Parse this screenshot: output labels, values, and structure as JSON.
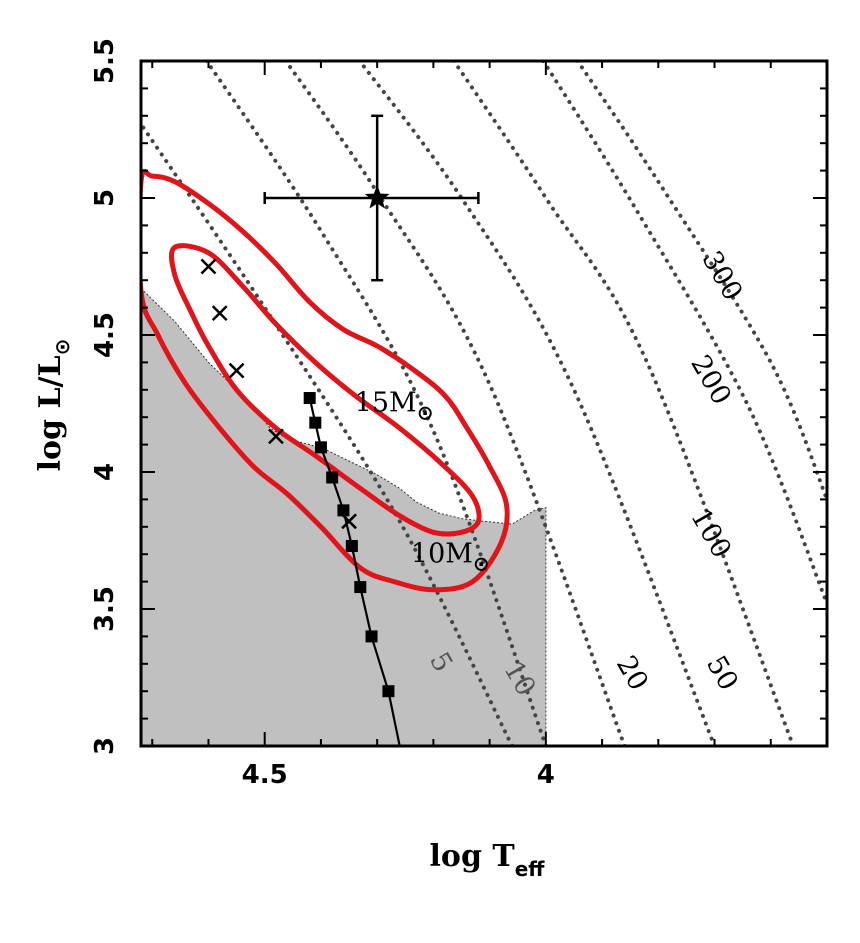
{
  "chart_data": {
    "type": "line",
    "title": "",
    "xlabel": {
      "main": "log T",
      "sub": "eff"
    },
    "ylabel": {
      "main": "log L/L",
      "sun": "⊙"
    },
    "xlim": [
      4.72,
      3.5
    ],
    "ylim": [
      3.0,
      5.5
    ],
    "x_reversed": true,
    "x_ticks": [
      {
        "value": 4.5,
        "label": "4.5"
      },
      {
        "value": 4.0,
        "label": "4"
      }
    ],
    "y_ticks": [
      {
        "value": 3.0,
        "label": "3"
      },
      {
        "value": 3.5,
        "label": "3.5"
      },
      {
        "value": 4.0,
        "label": "4"
      },
      {
        "value": 4.5,
        "label": "4.5"
      },
      {
        "value": 5.0,
        "label": "5"
      },
      {
        "value": 5.5,
        "label": "5.5"
      }
    ],
    "grid": false,
    "colors": {
      "contour": "#e0141b",
      "shade": "#c0c0c0",
      "radius_line": "#444444",
      "track": "#000000"
    },
    "series": [
      {
        "kind": "shaded_region",
        "points": [
          [
            4.72,
            4.67
          ],
          [
            4.66,
            4.55
          ],
          [
            4.6,
            4.4
          ],
          [
            4.54,
            4.28
          ],
          [
            4.49,
            4.16
          ],
          [
            4.46,
            4.12
          ],
          [
            4.42,
            4.1
          ],
          [
            4.39,
            4.08
          ],
          [
            4.34,
            4.03
          ],
          [
            4.3,
            3.99
          ],
          [
            4.26,
            3.94
          ],
          [
            4.23,
            3.89
          ],
          [
            4.19,
            3.85
          ],
          [
            4.15,
            3.83
          ],
          [
            4.11,
            3.82
          ],
          [
            4.06,
            3.81
          ],
          [
            4.02,
            3.86
          ],
          [
            4.0,
            3.87
          ],
          [
            4.0,
            3.0
          ],
          [
            4.72,
            3.0
          ]
        ]
      },
      {
        "kind": "contour_outer",
        "points": [
          [
            4.72,
            5.06
          ],
          [
            4.7,
            5.08
          ],
          [
            4.66,
            5.06
          ],
          [
            4.6,
            4.98
          ],
          [
            4.54,
            4.88
          ],
          [
            4.48,
            4.76
          ],
          [
            4.42,
            4.62
          ],
          [
            4.36,
            4.52
          ],
          [
            4.3,
            4.46
          ],
          [
            4.24,
            4.38
          ],
          [
            4.18,
            4.28
          ],
          [
            4.14,
            4.16
          ],
          [
            4.1,
            4.02
          ],
          [
            4.07,
            3.88
          ],
          [
            4.08,
            3.74
          ],
          [
            4.13,
            3.6
          ],
          [
            4.2,
            3.57
          ],
          [
            4.27,
            3.6
          ],
          [
            4.33,
            3.65
          ],
          [
            4.4,
            3.8
          ],
          [
            4.46,
            3.92
          ],
          [
            4.52,
            4.02
          ],
          [
            4.58,
            4.16
          ],
          [
            4.64,
            4.32
          ],
          [
            4.69,
            4.5
          ],
          [
            4.72,
            4.66
          ]
        ]
      },
      {
        "kind": "contour_inner",
        "points": [
          [
            4.66,
            4.82
          ],
          [
            4.6,
            4.8
          ],
          [
            4.54,
            4.68
          ],
          [
            4.48,
            4.54
          ],
          [
            4.41,
            4.4
          ],
          [
            4.34,
            4.28
          ],
          [
            4.26,
            4.16
          ],
          [
            4.18,
            4.02
          ],
          [
            4.13,
            3.91
          ],
          [
            4.12,
            3.82
          ],
          [
            4.15,
            3.78
          ],
          [
            4.2,
            3.78
          ],
          [
            4.26,
            3.84
          ],
          [
            4.33,
            3.94
          ],
          [
            4.41,
            4.06
          ],
          [
            4.48,
            4.16
          ],
          [
            4.55,
            4.3
          ],
          [
            4.6,
            4.46
          ],
          [
            4.63,
            4.58
          ],
          [
            4.66,
            4.72
          ]
        ]
      },
      {
        "kind": "evolutionary_track",
        "points": [
          [
            4.42,
            4.27
          ],
          [
            4.41,
            4.18
          ],
          [
            4.4,
            4.09
          ],
          [
            4.38,
            3.98
          ],
          [
            4.36,
            3.86
          ],
          [
            4.345,
            3.73
          ],
          [
            4.33,
            3.58
          ],
          [
            4.31,
            3.4
          ],
          [
            4.28,
            3.2
          ],
          [
            4.26,
            3.0
          ]
        ],
        "markers": [
          [
            4.42,
            4.27
          ],
          [
            4.41,
            4.18
          ],
          [
            4.4,
            4.09
          ],
          [
            4.38,
            3.98
          ],
          [
            4.36,
            3.86
          ],
          [
            4.345,
            3.73
          ],
          [
            4.33,
            3.58
          ],
          [
            4.31,
            3.4
          ],
          [
            4.28,
            3.2
          ]
        ]
      },
      {
        "kind": "cross_markers",
        "points": [
          [
            4.6,
            4.75
          ],
          [
            4.58,
            4.58
          ],
          [
            4.55,
            4.37
          ],
          [
            4.48,
            4.13
          ],
          [
            4.35,
            3.82
          ]
        ]
      }
    ],
    "radius_lines": [
      {
        "label": "5",
        "points": [
          [
            4.74,
            5.33
          ],
          [
            4.5,
            4.6
          ],
          [
            4.26,
            3.82
          ],
          [
            4.06,
            3.0
          ]
        ],
        "label_at": [
          4.2,
          3.29
        ],
        "label_color": "#555555"
      },
      {
        "label": "10",
        "points": [
          [
            4.62,
            5.55
          ],
          [
            4.4,
            4.88
          ],
          [
            4.2,
            4.15
          ],
          [
            4.0,
            3.0
          ]
        ],
        "label_at": [
          4.06,
          3.23
        ],
        "label_color": "#555555"
      },
      {
        "label": "20",
        "points": [
          [
            4.48,
            5.55
          ],
          [
            4.3,
            5.02
          ],
          [
            4.1,
            4.32
          ],
          [
            3.86,
            3.0
          ]
        ],
        "label_at": [
          3.86,
          3.25
        ],
        "label_color": "#000000"
      },
      {
        "label": "50",
        "points": [
          [
            4.35,
            5.55
          ],
          [
            4.15,
            5.0
          ],
          [
            3.95,
            4.3
          ],
          [
            3.7,
            3.0
          ]
        ],
        "label_at": [
          3.7,
          3.25
        ],
        "label_color": "#000000"
      },
      {
        "label": "100",
        "points": [
          [
            4.18,
            5.55
          ],
          [
            4.0,
            5.0
          ],
          [
            3.82,
            4.4
          ],
          [
            3.56,
            3.0
          ]
        ],
        "label_at": [
          3.72,
          3.76
        ],
        "label_color": "#000000"
      },
      {
        "label": "200",
        "points": [
          [
            4.02,
            5.55
          ],
          [
            3.84,
            4.96
          ],
          [
            3.64,
            4.24
          ],
          [
            3.5,
            3.52
          ]
        ],
        "label_at": [
          3.72,
          4.32
        ],
        "label_color": "#000000"
      },
      {
        "label": "300",
        "points": [
          [
            3.96,
            5.55
          ],
          [
            3.8,
            5.06
          ],
          [
            3.6,
            4.4
          ],
          [
            3.5,
            3.9
          ]
        ],
        "label_at": [
          3.7,
          4.7
        ],
        "label_color": "#000000"
      }
    ],
    "observed_star": {
      "x": 4.3,
      "y": 5.0,
      "x_err": [
        0.2,
        0.18
      ],
      "y_err": [
        0.3,
        0.3
      ]
    },
    "annotations": [
      {
        "main": "15M",
        "sun": "⊙",
        "x": 4.34,
        "y": 4.22
      },
      {
        "main": "10M",
        "sun": "⊙",
        "x": 4.24,
        "y": 3.67
      }
    ]
  }
}
